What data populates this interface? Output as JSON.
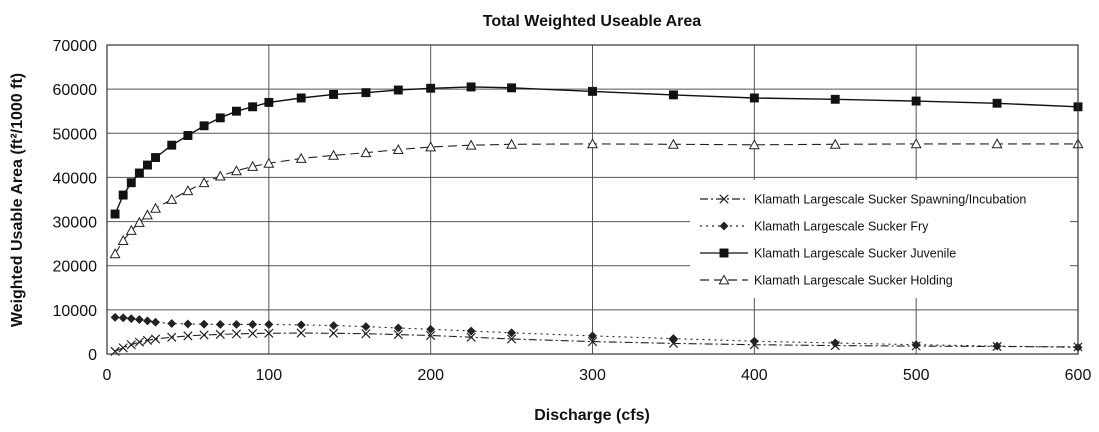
{
  "chart_data": {
    "type": "line",
    "title": "Total Weighted Useable Area",
    "xlabel": "Discharge (cfs)",
    "ylabel": "Weighted Usable Area (ft²/1000 ft)",
    "xlim": [
      0,
      600
    ],
    "ylim": [
      0,
      70000
    ],
    "xticks": [
      0,
      100,
      200,
      300,
      400,
      500,
      600
    ],
    "yticks": [
      0,
      10000,
      20000,
      30000,
      40000,
      50000,
      60000,
      70000
    ],
    "grid": "vertical-and-horizontal",
    "legend_position": "right",
    "series": [
      {
        "name": "Klamath Largescale Sucker Spawning/Incubation",
        "marker": "x",
        "line": "dash-dot",
        "color": "#222222",
        "x": [
          5,
          10,
          15,
          20,
          25,
          30,
          40,
          50,
          60,
          70,
          80,
          90,
          100,
          120,
          140,
          160,
          180,
          200,
          225,
          250,
          300,
          350,
          400,
          450,
          500,
          550,
          600
        ],
        "y": [
          600,
          1400,
          2100,
          2700,
          3100,
          3400,
          3800,
          4100,
          4300,
          4450,
          4550,
          4650,
          4700,
          4750,
          4700,
          4600,
          4400,
          4200,
          3800,
          3400,
          2800,
          2400,
          2100,
          1900,
          1800,
          1700,
          1600
        ]
      },
      {
        "name": "Klamath Largescale Sucker Fry",
        "marker": "diamond",
        "line": "dotted",
        "color": "#222222",
        "x": [
          5,
          10,
          15,
          20,
          25,
          30,
          40,
          50,
          60,
          70,
          80,
          90,
          100,
          120,
          140,
          160,
          180,
          200,
          225,
          250,
          300,
          350,
          400,
          450,
          500,
          550,
          600
        ],
        "y": [
          8300,
          8200,
          8000,
          7800,
          7500,
          7200,
          6900,
          6800,
          6750,
          6700,
          6700,
          6700,
          6700,
          6600,
          6450,
          6200,
          5900,
          5600,
          5200,
          4800,
          4100,
          3500,
          2900,
          2500,
          2100,
          1800,
          1500
        ]
      },
      {
        "name": "Klamath Largescale Sucker Juvenile",
        "marker": "square",
        "line": "solid",
        "color": "#111111",
        "x": [
          5,
          10,
          15,
          20,
          25,
          30,
          40,
          50,
          60,
          70,
          80,
          90,
          100,
          120,
          140,
          160,
          180,
          200,
          225,
          250,
          300,
          350,
          400,
          450,
          500,
          550,
          600
        ],
        "y": [
          31700,
          36000,
          38800,
          41000,
          42800,
          44500,
          47300,
          49500,
          51700,
          53500,
          55000,
          56000,
          57000,
          58000,
          58800,
          59200,
          59800,
          60200,
          60500,
          60300,
          59500,
          58700,
          58000,
          57700,
          57300,
          56800,
          56000
        ]
      },
      {
        "name": "Klamath Largescale Sucker Holding",
        "marker": "triangle",
        "line": "dashed",
        "color": "#222222",
        "x": [
          5,
          10,
          15,
          20,
          25,
          30,
          40,
          50,
          60,
          70,
          80,
          90,
          100,
          120,
          140,
          160,
          180,
          200,
          225,
          250,
          300,
          350,
          400,
          450,
          500,
          550,
          600
        ],
        "y": [
          22700,
          25700,
          28000,
          29800,
          31500,
          33000,
          35000,
          37000,
          38800,
          40300,
          41500,
          42500,
          43200,
          44300,
          45000,
          45600,
          46300,
          46900,
          47300,
          47500,
          47600,
          47500,
          47400,
          47500,
          47600,
          47600,
          47600
        ]
      }
    ]
  }
}
